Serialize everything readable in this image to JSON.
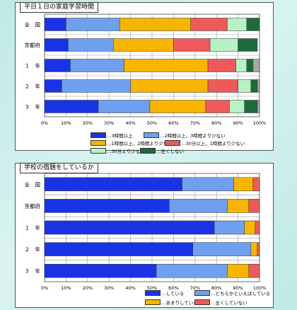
{
  "chart_data": [
    {
      "type": "bar",
      "stacked": true,
      "orientation": "horizontal",
      "title": "平日１日の家庭学習時間",
      "categories": [
        "全　国",
        "京都府",
        "１　年",
        "２　年",
        "３　年"
      ],
      "xlim": [
        0,
        100
      ],
      "x_ticks": [
        "0%",
        "10%",
        "20%",
        "30%",
        "40%",
        "50%",
        "60%",
        "70%",
        "80%",
        "90%",
        "100%"
      ],
      "grid": true,
      "legend_placement": "bottom",
      "series": [
        {
          "name": "…3時間以上",
          "color": "#1a33e6",
          "values": [
            10,
            11,
            12,
            8,
            25
          ]
        },
        {
          "name": "…2時間以上，3時間より少ない",
          "color": "#6fa0f0",
          "values": [
            25,
            21,
            25,
            32,
            24
          ]
        },
        {
          "name": "…1時間以上，2時間より少ない",
          "color": "#f7b500",
          "values": [
            33,
            28,
            39,
            36,
            26
          ]
        },
        {
          "name": "…30分以上，1時間より少ない",
          "color": "#ee5a5a",
          "values": [
            17,
            17,
            13,
            14,
            11
          ]
        },
        {
          "name": "…30分より少ない",
          "color": "#b7f2c7",
          "values": [
            9,
            13,
            5,
            6,
            7
          ]
        },
        {
          "name": "…全くしない",
          "color": "#1d6b3a",
          "values": [
            6,
            9,
            3,
            3,
            6
          ]
        },
        {
          "name": "",
          "color": "#a8a8a8",
          "values": [
            0,
            0,
            3,
            1,
            1
          ]
        }
      ]
    },
    {
      "type": "bar",
      "stacked": true,
      "orientation": "horizontal",
      "title": "学校の宿題をしているか",
      "categories": [
        "全　国",
        "京都府",
        "１　年",
        "２　年",
        "３　年"
      ],
      "xlim": [
        0,
        100
      ],
      "x_ticks": [
        "0%",
        "10%",
        "20%",
        "30%",
        "40%",
        "50%",
        "60%",
        "70%",
        "80%",
        "90%",
        "100%"
      ],
      "grid": true,
      "legend_placement": "bottom",
      "series": [
        {
          "name": "…している",
          "color": "#1a33e6",
          "values": [
            64,
            58,
            79,
            69,
            52
          ]
        },
        {
          "name": "…どちらかといえばしている",
          "color": "#6fa0f0",
          "values": [
            24,
            27,
            14,
            27,
            33
          ]
        },
        {
          "name": "…あまりしていない",
          "color": "#f7b500",
          "values": [
            9,
            10,
            5,
            3,
            10
          ]
        },
        {
          "name": "…全くしていない",
          "color": "#ee5a5a",
          "values": [
            3,
            5,
            2,
            1,
            5
          ]
        }
      ]
    }
  ]
}
